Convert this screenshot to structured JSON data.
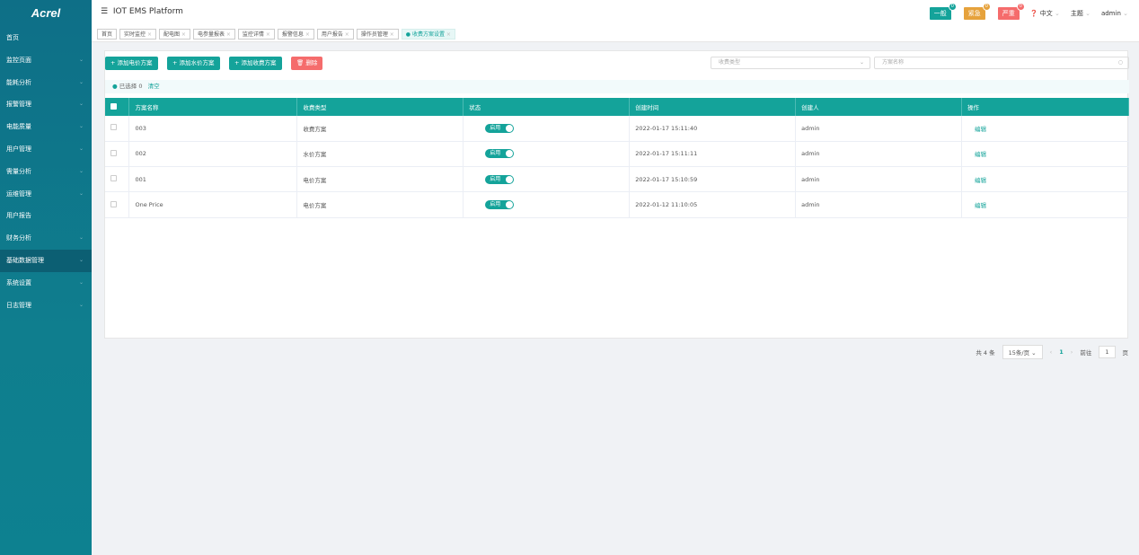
{
  "logo": "Acrel",
  "sidebar": {
    "items": [
      {
        "label": "首页",
        "chev": false
      },
      {
        "label": "监控页面",
        "chev": true
      },
      {
        "label": "能耗分析",
        "chev": true
      },
      {
        "label": "报警管理",
        "chev": true
      },
      {
        "label": "电能质量",
        "chev": true
      },
      {
        "label": "用户管理",
        "chev": true
      },
      {
        "label": "需量分析",
        "chev": true
      },
      {
        "label": "运维管理",
        "chev": true
      },
      {
        "label": "用户报告",
        "chev": false
      },
      {
        "label": "财务分析",
        "chev": true
      },
      {
        "label": "基础数据管理",
        "chev": true,
        "active": true
      },
      {
        "label": "系统设置",
        "chev": true
      },
      {
        "label": "日志管理",
        "chev": true
      }
    ]
  },
  "header": {
    "title": "IOT EMS Platform",
    "alarms": [
      {
        "label": "一般",
        "count": "0",
        "color": "#14a39a"
      },
      {
        "label": "紧急",
        "count": "0",
        "color": "#e6a23c"
      },
      {
        "label": "严重",
        "count": "0",
        "color": "#f56c6c"
      }
    ],
    "lang": "中文",
    "theme": "主题",
    "user": "admin"
  },
  "tabs": [
    {
      "label": "首页"
    },
    {
      "label": "实时监控"
    },
    {
      "label": "配电图"
    },
    {
      "label": "电参量报表"
    },
    {
      "label": "监控详情"
    },
    {
      "label": "报警信息"
    },
    {
      "label": "用户报告"
    },
    {
      "label": "操作员管理"
    },
    {
      "label": "● 收费方案设置",
      "active": true
    }
  ],
  "toolbar": {
    "add_electric": "+ 添加电价方案",
    "add_water": "+ 添加水价方案",
    "add_fee": "+ 添加收费方案",
    "delete": "🗑 删除",
    "type_placeholder": "收费类型",
    "name_placeholder": "方案名称"
  },
  "selection": {
    "text": "已选择 0",
    "clear": "清空"
  },
  "table": {
    "headers": [
      "方案名称",
      "收费类型",
      "状态",
      "创建时间",
      "创建人",
      "操作"
    ],
    "rows": [
      {
        "name": "003",
        "type": "收费方案",
        "status": "启用",
        "time": "2022-01-17 15:11:40",
        "creator": "admin",
        "action": "编辑"
      },
      {
        "name": "002",
        "type": "水价方案",
        "status": "启用",
        "time": "2022-01-17 15:11:11",
        "creator": "admin",
        "action": "编辑"
      },
      {
        "name": "001",
        "type": "电价方案",
        "status": "启用",
        "time": "2022-01-17 15:10:59",
        "creator": "admin",
        "action": "编辑"
      },
      {
        "name": "One Price",
        "type": "电价方案",
        "status": "启用",
        "time": "2022-01-12 11:10:05",
        "creator": "admin",
        "action": "编辑"
      }
    ]
  },
  "pager": {
    "total": "共 4 条",
    "size": "15条/页",
    "page": "1",
    "goto": "前往",
    "goto_value": "1",
    "unit": "页"
  }
}
